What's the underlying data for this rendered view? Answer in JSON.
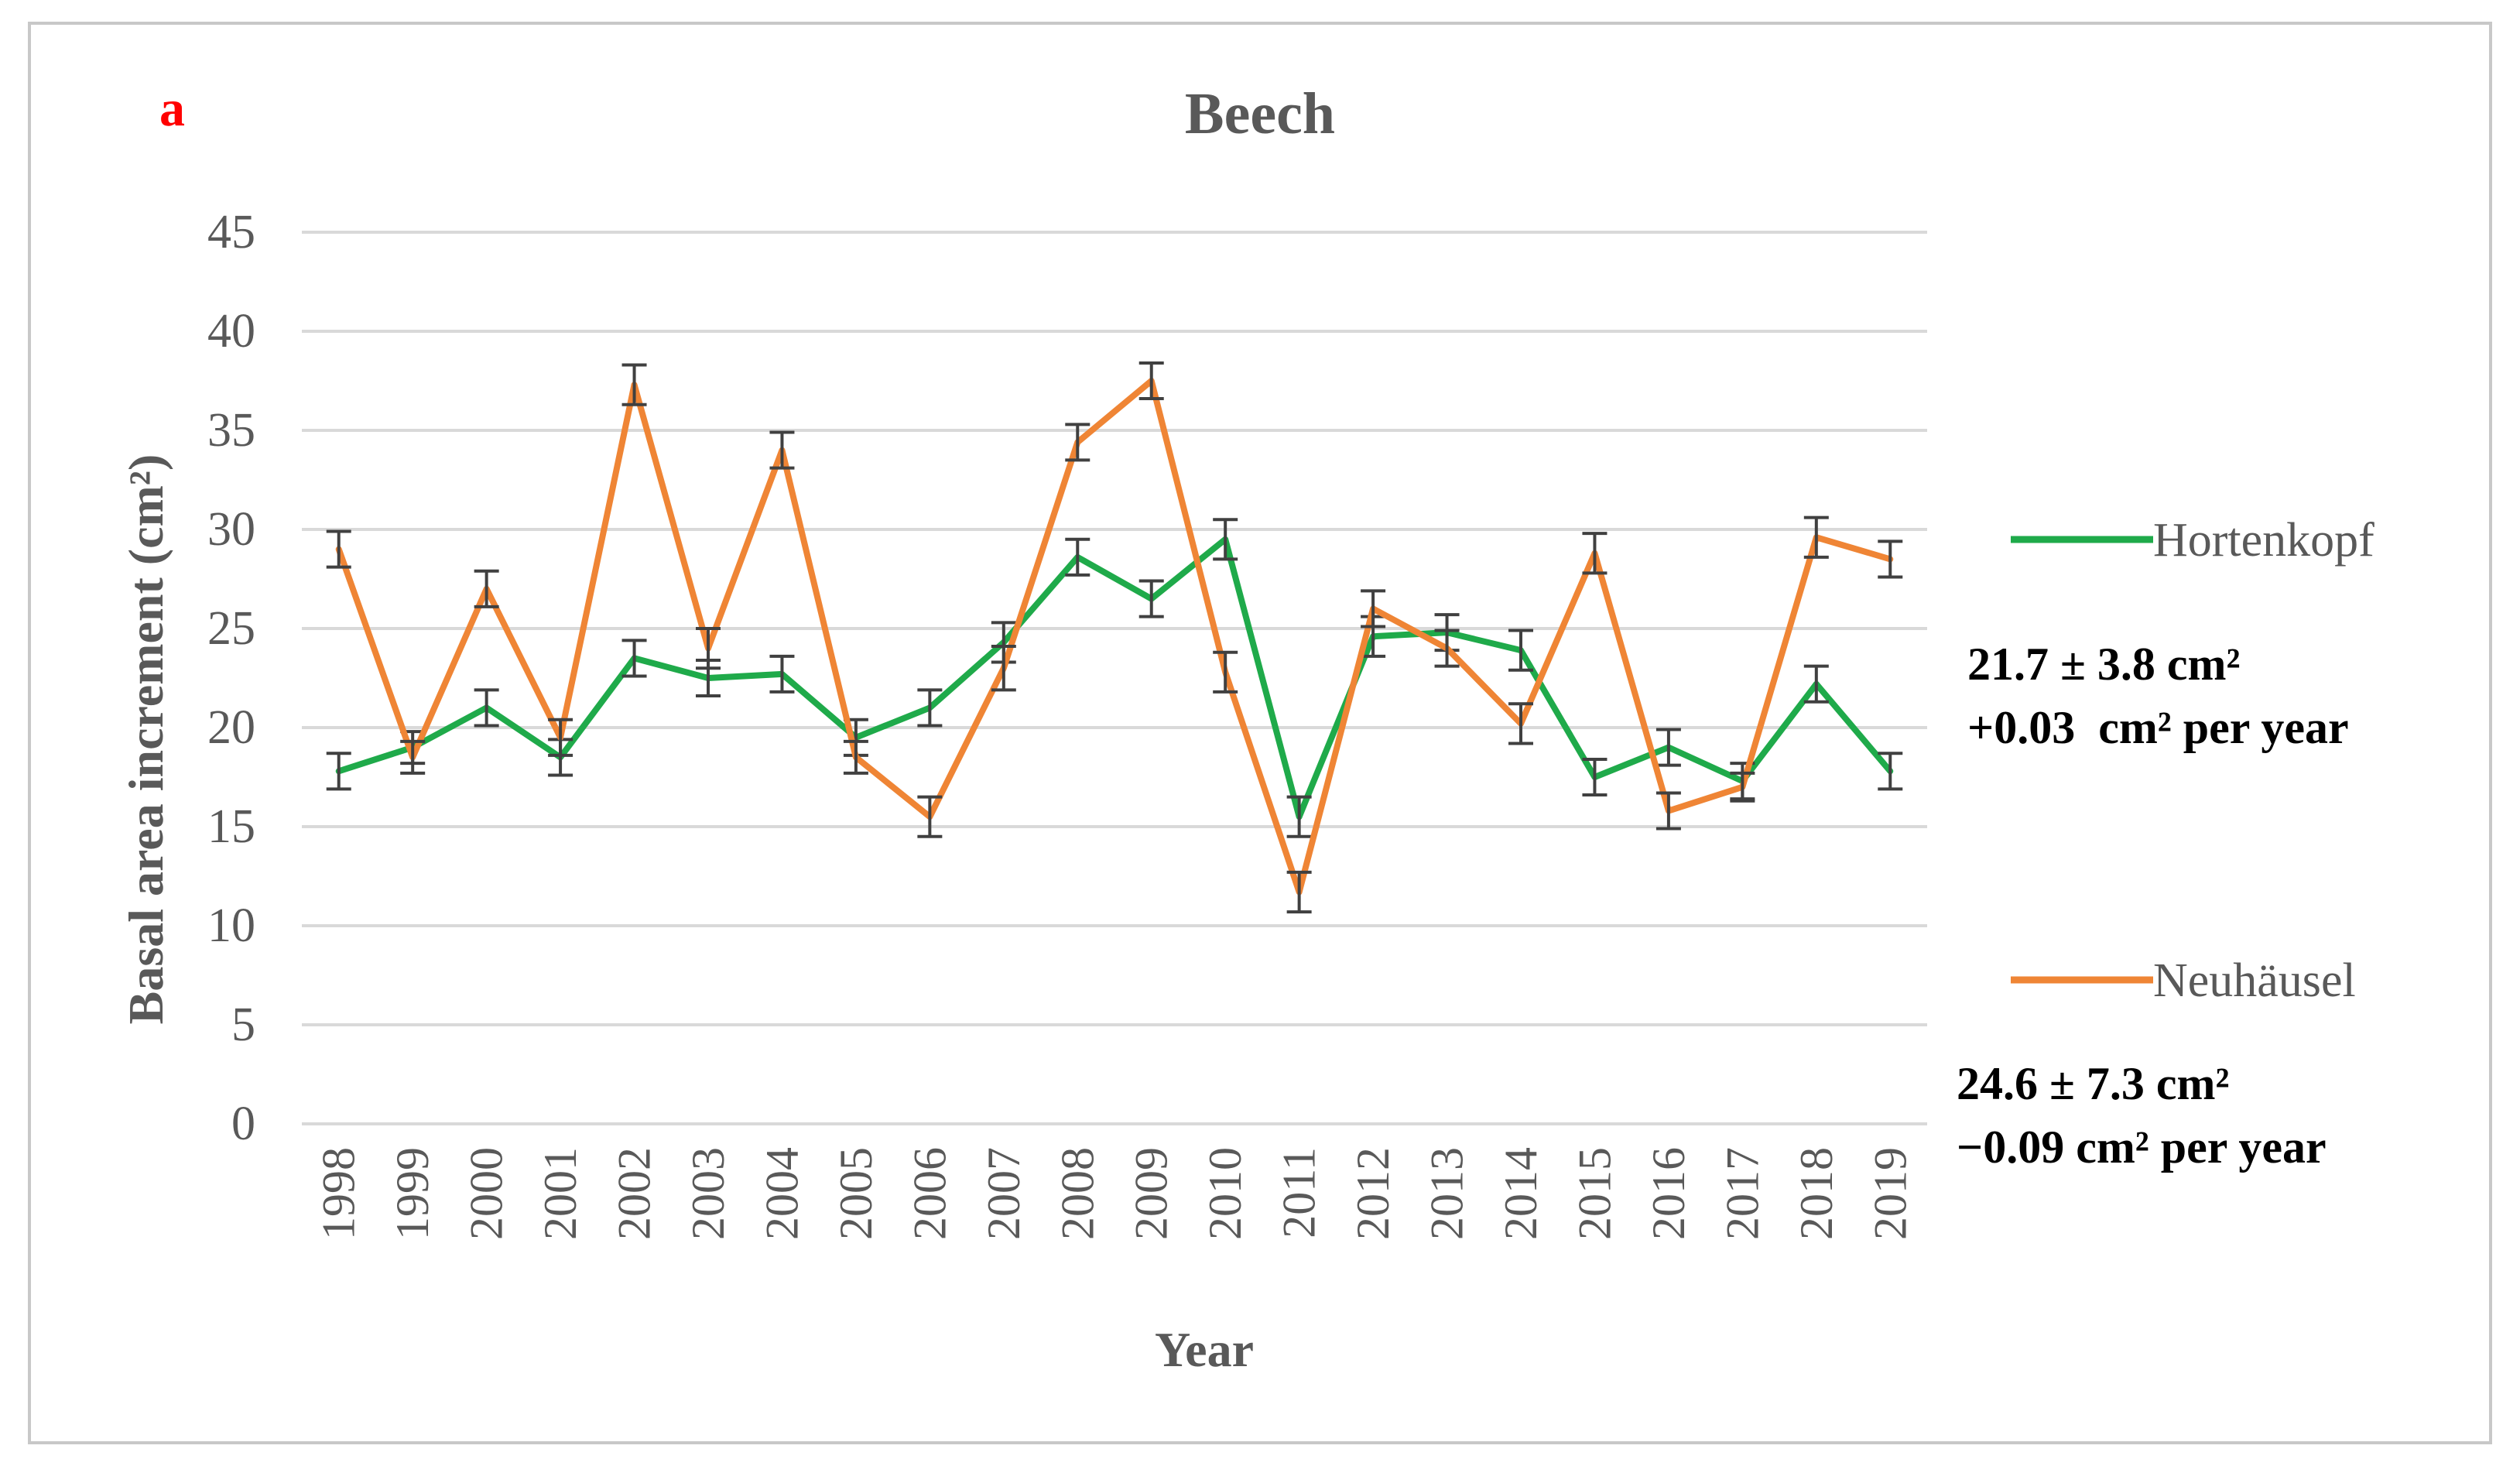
{
  "panel_label": "a",
  "chart_data": {
    "type": "line",
    "title": "Beech",
    "xlabel": "Year",
    "ylabel": "Basal area increment (cm²)",
    "ylim": [
      0,
      45
    ],
    "yticks": [
      0,
      5,
      10,
      15,
      20,
      25,
      30,
      35,
      40,
      45
    ],
    "grid": true,
    "legend_position": "right",
    "categories": [
      "1998",
      "1999",
      "2000",
      "2001",
      "2002",
      "2003",
      "2004",
      "2005",
      "2006",
      "2007",
      "2008",
      "2009",
      "2010",
      "2011",
      "2012",
      "2013",
      "2014",
      "2015",
      "2016",
      "2017",
      "2018",
      "2019"
    ],
    "series": [
      {
        "name": "Hortenkopf",
        "color": "#1faa4a",
        "values": [
          17.8,
          19.0,
          21.0,
          18.5,
          23.5,
          22.5,
          22.7,
          19.5,
          21.0,
          24.3,
          28.6,
          26.5,
          29.5,
          15.5,
          24.6,
          24.8,
          23.9,
          17.5,
          19.0,
          17.3,
          22.2,
          17.8
        ],
        "errors": [
          0.9,
          0.8,
          0.9,
          0.9,
          0.9,
          0.9,
          0.9,
          0.9,
          0.9,
          1.0,
          0.9,
          0.9,
          1.0,
          1.0,
          1.0,
          0.9,
          1.0,
          0.9,
          0.9,
          0.9,
          0.9,
          0.9
        ],
        "summary_mean": "21.7 ± 3.8 cm²",
        "summary_trend": "+0.03  cm² per year"
      },
      {
        "name": "Neuhäusel",
        "color": "#ef8535",
        "values": [
          29.0,
          18.5,
          27.0,
          19.5,
          37.3,
          24.0,
          34.0,
          18.5,
          15.5,
          23.0,
          34.4,
          37.5,
          22.8,
          11.7,
          26.0,
          24.0,
          20.2,
          28.8,
          15.8,
          17.0,
          29.6,
          28.5
        ],
        "errors": [
          0.9,
          0.8,
          0.9,
          0.9,
          1.0,
          1.0,
          0.9,
          0.8,
          1.0,
          1.1,
          0.9,
          0.9,
          1.0,
          1.0,
          0.9,
          0.9,
          1.0,
          1.0,
          0.9,
          0.7,
          1.0,
          0.9
        ],
        "summary_mean": "24.6 ± 7.3 cm²",
        "summary_trend": "−0.09 cm² per year"
      }
    ]
  }
}
